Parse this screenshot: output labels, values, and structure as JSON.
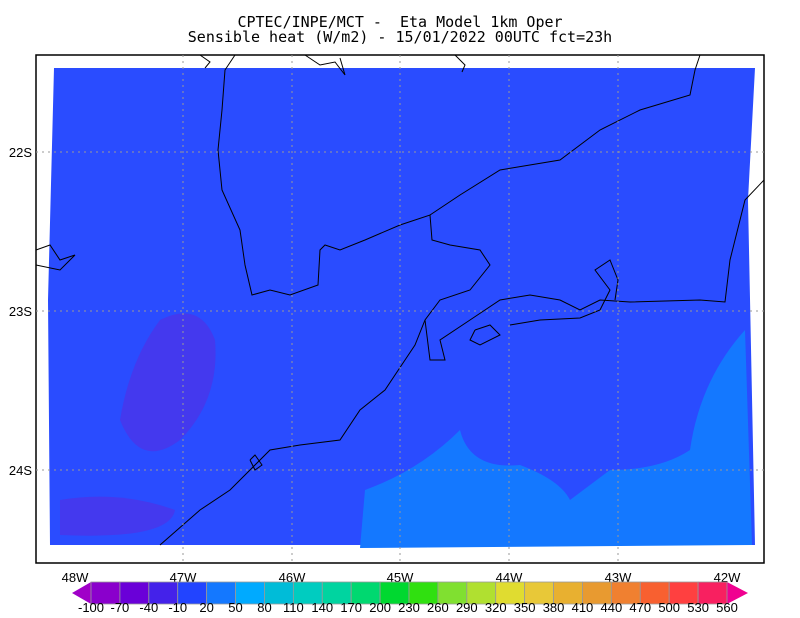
{
  "title": {
    "line1": "CPTEC/INPE/MCT -  Eta Model 1km Oper",
    "line2": "Sensible heat (W/m2) - 15/01/2022 00UTC fct=23h"
  },
  "map": {
    "lon_labels": [
      "48W",
      "47W",
      "46W",
      "45W",
      "44W",
      "43W",
      "42W"
    ],
    "lat_labels": [
      "22S",
      "23S",
      "24S"
    ],
    "field_color": "#2a4cff",
    "field_color_high": "#1478ff",
    "field_color_low": "#5a2ae0"
  },
  "colorbar": {
    "labels": [
      "-100",
      "-70",
      "-40",
      "-10",
      "20",
      "50",
      "80",
      "110",
      "140",
      "170",
      "200",
      "230",
      "260",
      "290",
      "320",
      "350",
      "380",
      "410",
      "440",
      "470",
      "500",
      "530",
      "560"
    ],
    "colors": [
      "#8a00cc",
      "#6a00d8",
      "#4422ea",
      "#2244ff",
      "#1478ff",
      "#00aaff",
      "#00bcd8",
      "#00ccc0",
      "#00d4a0",
      "#00d870",
      "#00d830",
      "#30e010",
      "#80e030",
      "#b0e030",
      "#e0dc30",
      "#e8c838",
      "#e8b030",
      "#e89a30",
      "#f08030",
      "#f86030",
      "#ff4040",
      "#f82060"
    ],
    "low_color": "#a000c8",
    "high_color": "#f00090"
  }
}
